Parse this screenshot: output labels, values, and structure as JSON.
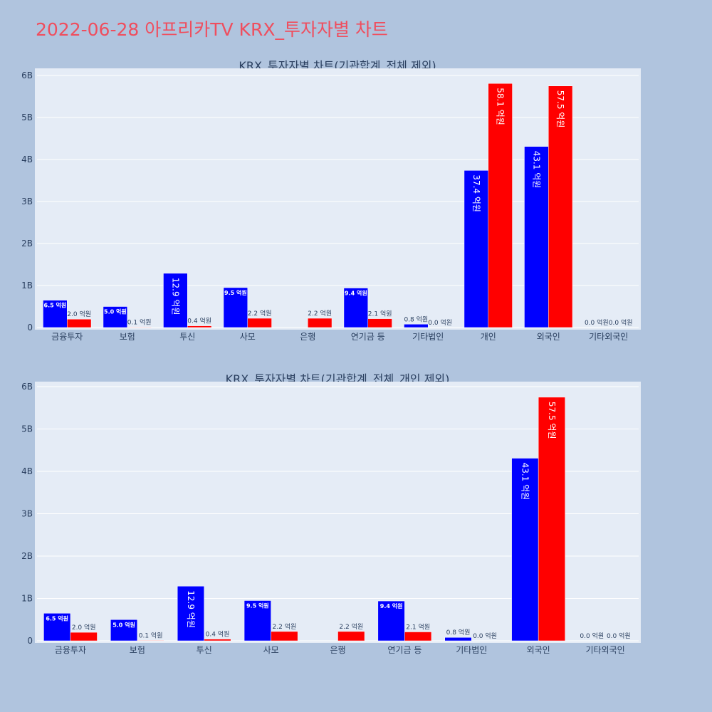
{
  "page": {
    "title": "2022-06-28 아프리카TV KRX_투자자별 차트"
  },
  "colors": {
    "background": "#b0c4de",
    "plot_background": "#e5ecf6",
    "title": "#ef4e5e",
    "series_a": "#0000ff",
    "series_b": "#ff0000"
  },
  "chart_data": [
    {
      "type": "bar",
      "title": "KRX_투자자별 차트(기관합계_전체 제외)",
      "categories": [
        "금융투자",
        "보험",
        "투신",
        "사모",
        "은행",
        "연기금 등",
        "기타법인",
        "개인",
        "외국인",
        "기타외국인"
      ],
      "yticks": [
        "0",
        "1B",
        "2B",
        "3B",
        "4B",
        "5B",
        "6B"
      ],
      "ylim": [
        0,
        6.0
      ],
      "unit": "B",
      "grid": true,
      "series": [
        {
          "color": "#0000ff",
          "values": [
            0.65,
            0.5,
            1.29,
            0.95,
            0.0,
            0.94,
            0.08,
            3.74,
            4.31,
            0.0
          ],
          "labels": [
            "6.5 억원",
            "5.0 억원",
            "12.9 억원",
            "9.5 억원",
            "",
            "9.4 억원",
            "0.8 억원",
            "37.4 억원",
            "43.1 억원",
            "0.0 억원"
          ]
        },
        {
          "color": "#ff0000",
          "values": [
            0.2,
            0.01,
            0.04,
            0.22,
            0.22,
            0.21,
            0.0,
            5.81,
            5.75,
            0.0
          ],
          "labels": [
            "2.0 억원",
            "0.1 억원",
            "0.4 억원",
            "2.2 억원",
            "2.2 억원",
            "2.1 억원",
            "0.0 억원",
            "58.1 억원",
            "57.5 억원",
            "0.0 억원"
          ]
        }
      ]
    },
    {
      "type": "bar",
      "title": "KRX_투자자별 차트(기관합계_전체_개인 제외)",
      "categories": [
        "금융투자",
        "보험",
        "투신",
        "사모",
        "은행",
        "연기금 등",
        "기타법인",
        "외국인",
        "기타외국인"
      ],
      "yticks": [
        "0",
        "1B",
        "2B",
        "3B",
        "4B",
        "5B",
        "6B"
      ],
      "ylim": [
        0,
        6.0
      ],
      "unit": "B",
      "grid": true,
      "series": [
        {
          "color": "#0000ff",
          "values": [
            0.65,
            0.5,
            1.29,
            0.95,
            0.0,
            0.94,
            0.08,
            4.31,
            0.0
          ],
          "labels": [
            "6.5 억원",
            "5.0 억원",
            "12.9 억원",
            "9.5 억원",
            "",
            "9.4 억원",
            "0.8 억원",
            "43.1 억원",
            "0.0 억원"
          ]
        },
        {
          "color": "#ff0000",
          "values": [
            0.2,
            0.01,
            0.04,
            0.22,
            0.22,
            0.21,
            0.0,
            5.75,
            0.0
          ],
          "labels": [
            "2.0 억원",
            "0.1 억원",
            "0.4 억원",
            "2.2 억원",
            "2.2 억원",
            "2.1 억원",
            "0.0 억원",
            "57.5 억원",
            "0.0 억원"
          ]
        }
      ]
    }
  ]
}
